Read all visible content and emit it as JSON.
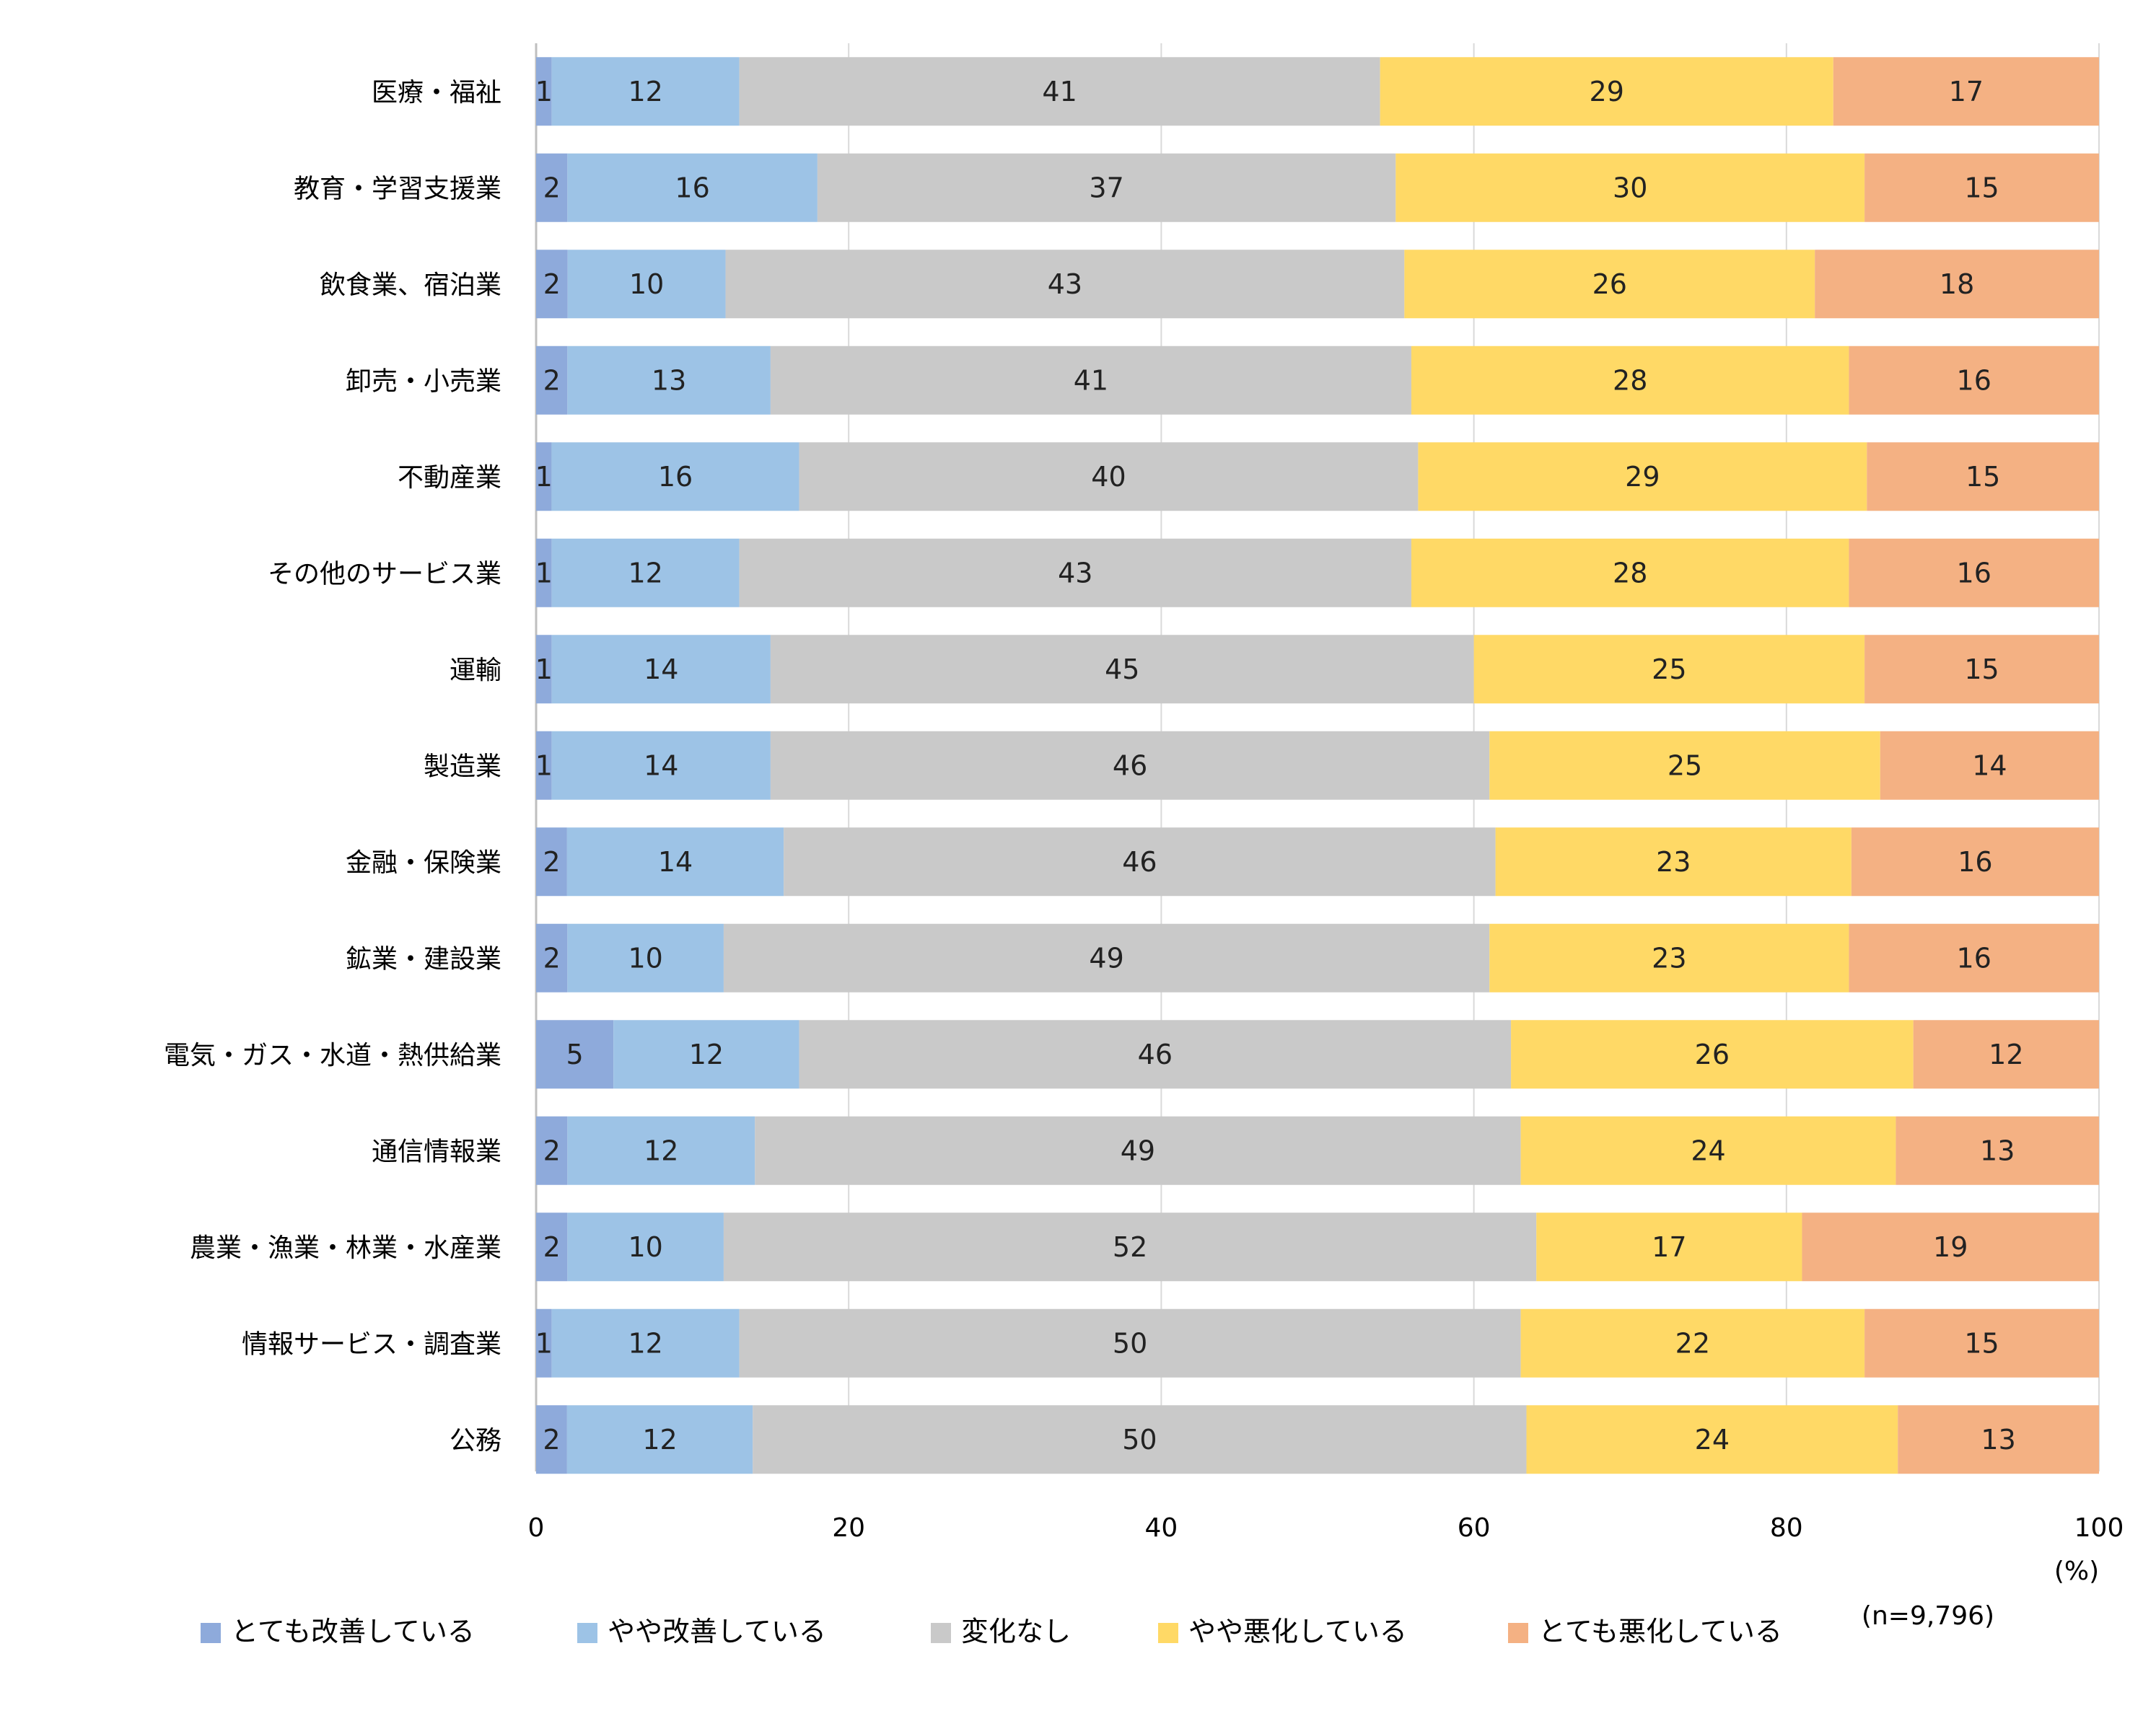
{
  "chart_data": {
    "type": "bar",
    "orientation": "horizontal",
    "stacked": true,
    "categories": [
      "医療・福祉",
      "教育・学習支援業",
      "飲食業、宿泊業",
      "卸売・小売業",
      "不動産業",
      "その他のサービス業",
      "運輸",
      "製造業",
      "金融・保険業",
      "鉱業・建設業",
      "電気・ガス・水道・熱供給業",
      "通信情報業",
      "農業・漁業・林業・水産業",
      "情報サービス・調査業",
      "公務"
    ],
    "series": [
      {
        "name": "とても改善している",
        "color": "#8eaadb",
        "values": [
          1,
          2,
          2,
          2,
          1,
          1,
          1,
          1,
          2,
          2,
          5,
          2,
          2,
          1,
          2
        ]
      },
      {
        "name": "やや改善している",
        "color": "#9dc3e6",
        "values": [
          12,
          16,
          10,
          13,
          16,
          12,
          14,
          14,
          14,
          10,
          12,
          12,
          10,
          12,
          12
        ]
      },
      {
        "name": "変化なし",
        "color": "#c9c9c9",
        "values": [
          41,
          37,
          43,
          41,
          40,
          43,
          45,
          46,
          46,
          49,
          46,
          49,
          52,
          50,
          50
        ]
      },
      {
        "name": "やや悪化している",
        "color": "#ffd966",
        "values": [
          29,
          30,
          26,
          28,
          29,
          28,
          25,
          25,
          23,
          23,
          26,
          24,
          17,
          22,
          24
        ]
      },
      {
        "name": "とても悪化している",
        "color": "#f4b183",
        "values": [
          17,
          15,
          18,
          16,
          15,
          16,
          15,
          14,
          16,
          16,
          12,
          13,
          19,
          15,
          13
        ]
      }
    ],
    "xlim": [
      0,
      100
    ],
    "xticks": [
      "0",
      "20",
      "40",
      "60",
      "80",
      "100"
    ],
    "xunit": "(%)",
    "note": "(n=9,796)",
    "grid": true,
    "legend": "bottom"
  }
}
